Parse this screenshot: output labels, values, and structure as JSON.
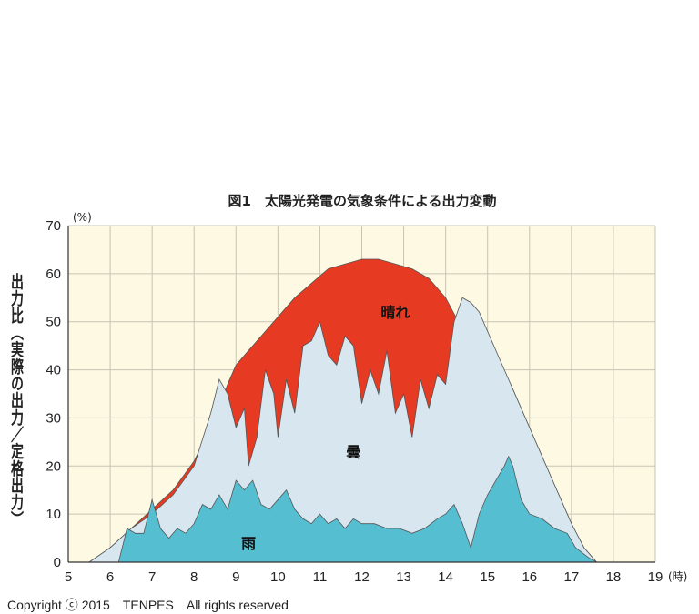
{
  "chart_data": {
    "type": "area",
    "title": "図1　太陽光発電の気象条件による出力変動",
    "ylabel": "出力比（実際の出力／定格出力）",
    "y_unit": "(%)",
    "x_unit": "(時)",
    "xlim": [
      5,
      19
    ],
    "ylim": [
      0,
      70
    ],
    "x_ticks": [
      5,
      6,
      7,
      8,
      9,
      10,
      11,
      12,
      13,
      14,
      15,
      16,
      17,
      18,
      19
    ],
    "y_ticks": [
      0,
      10,
      20,
      30,
      40,
      50,
      60,
      70
    ],
    "grid": true,
    "series": [
      {
        "name": "晴れ",
        "color": "#e63b22",
        "points": [
          [
            5.5,
            0
          ],
          [
            6,
            3
          ],
          [
            6.5,
            7
          ],
          [
            7,
            11
          ],
          [
            7.5,
            15
          ],
          [
            8,
            21
          ],
          [
            8.5,
            30
          ],
          [
            8.8,
            37
          ],
          [
            9,
            41
          ],
          [
            9.3,
            44
          ],
          [
            9.6,
            47
          ],
          [
            10,
            51
          ],
          [
            10.4,
            55
          ],
          [
            10.8,
            58
          ],
          [
            11.2,
            61
          ],
          [
            11.6,
            62
          ],
          [
            12,
            63
          ],
          [
            12.4,
            63
          ],
          [
            12.8,
            62
          ],
          [
            13.2,
            61
          ],
          [
            13.6,
            59
          ],
          [
            14,
            55
          ],
          [
            14.3,
            50
          ],
          [
            14.6,
            47
          ],
          [
            15,
            44
          ],
          [
            15.3,
            40
          ],
          [
            15.6,
            36
          ],
          [
            16,
            28
          ],
          [
            16.5,
            18
          ],
          [
            17,
            8
          ],
          [
            17.3,
            3
          ],
          [
            17.6,
            0
          ]
        ]
      },
      {
        "name": "曇",
        "color": "#d7e6ef",
        "points": [
          [
            5.5,
            0
          ],
          [
            6,
            3
          ],
          [
            6.5,
            7
          ],
          [
            7,
            10
          ],
          [
            7.5,
            14
          ],
          [
            8,
            20
          ],
          [
            8.4,
            31
          ],
          [
            8.6,
            38
          ],
          [
            8.8,
            35
          ],
          [
            9,
            28
          ],
          [
            9.2,
            32
          ],
          [
            9.3,
            20
          ],
          [
            9.5,
            26
          ],
          [
            9.7,
            40
          ],
          [
            9.9,
            35
          ],
          [
            10,
            26
          ],
          [
            10.2,
            38
          ],
          [
            10.4,
            31
          ],
          [
            10.6,
            45
          ],
          [
            10.8,
            46
          ],
          [
            11,
            50
          ],
          [
            11.2,
            43
          ],
          [
            11.4,
            41
          ],
          [
            11.6,
            47
          ],
          [
            11.8,
            45
          ],
          [
            12,
            33
          ],
          [
            12.2,
            40
          ],
          [
            12.4,
            35
          ],
          [
            12.6,
            44
          ],
          [
            12.8,
            31
          ],
          [
            13,
            35
          ],
          [
            13.2,
            26
          ],
          [
            13.4,
            38
          ],
          [
            13.6,
            32
          ],
          [
            13.8,
            39
          ],
          [
            14,
            37
          ],
          [
            14.2,
            50
          ],
          [
            14.4,
            55
          ],
          [
            14.6,
            54
          ],
          [
            14.8,
            52
          ],
          [
            15,
            48
          ],
          [
            15.3,
            42
          ],
          [
            15.6,
            36
          ],
          [
            16,
            28
          ],
          [
            16.5,
            18
          ],
          [
            17,
            8
          ],
          [
            17.3,
            3
          ],
          [
            17.6,
            0
          ]
        ]
      },
      {
        "name": "雨",
        "color": "#55bed0",
        "points": [
          [
            6.2,
            0
          ],
          [
            6.4,
            7
          ],
          [
            6.6,
            6
          ],
          [
            6.8,
            6
          ],
          [
            7,
            13
          ],
          [
            7.2,
            7
          ],
          [
            7.4,
            5
          ],
          [
            7.6,
            7
          ],
          [
            7.8,
            6
          ],
          [
            8,
            8
          ],
          [
            8.2,
            12
          ],
          [
            8.4,
            11
          ],
          [
            8.6,
            14
          ],
          [
            8.8,
            11
          ],
          [
            9,
            17
          ],
          [
            9.2,
            15
          ],
          [
            9.4,
            17
          ],
          [
            9.6,
            12
          ],
          [
            9.8,
            11
          ],
          [
            10,
            13
          ],
          [
            10.2,
            15
          ],
          [
            10.4,
            11
          ],
          [
            10.6,
            9
          ],
          [
            10.8,
            8
          ],
          [
            11,
            10
          ],
          [
            11.2,
            8
          ],
          [
            11.4,
            9
          ],
          [
            11.6,
            7
          ],
          [
            11.8,
            9
          ],
          [
            12,
            8
          ],
          [
            12.3,
            8
          ],
          [
            12.6,
            7
          ],
          [
            12.9,
            7
          ],
          [
            13.2,
            6
          ],
          [
            13.5,
            7
          ],
          [
            13.8,
            9
          ],
          [
            14,
            10
          ],
          [
            14.2,
            12
          ],
          [
            14.4,
            8
          ],
          [
            14.6,
            3
          ],
          [
            14.8,
            10
          ],
          [
            15,
            14
          ],
          [
            15.2,
            17
          ],
          [
            15.4,
            20
          ],
          [
            15.5,
            22
          ],
          [
            15.6,
            20
          ],
          [
            15.8,
            13
          ],
          [
            16,
            10
          ],
          [
            16.3,
            9
          ],
          [
            16.6,
            7
          ],
          [
            16.9,
            6
          ],
          [
            17.1,
            3
          ],
          [
            17.4,
            1
          ],
          [
            17.6,
            0
          ]
        ]
      }
    ]
  },
  "copyright": "Copyright ⓒ 2015　TENPES　All rights reserved"
}
